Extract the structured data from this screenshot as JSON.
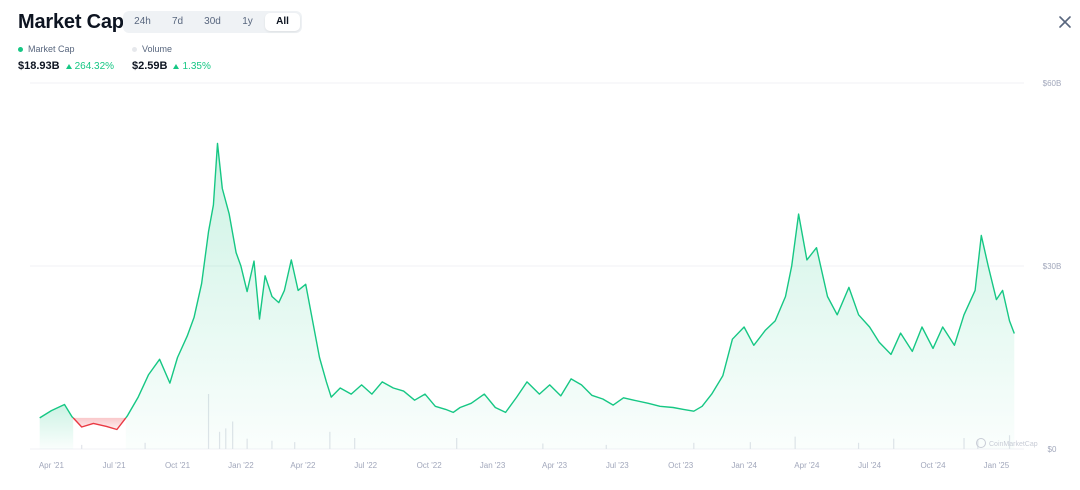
{
  "header": {
    "title": "Market Cap",
    "tabs": [
      {
        "label": "24h",
        "active": false
      },
      {
        "label": "7d",
        "active": false
      },
      {
        "label": "30d",
        "active": false
      },
      {
        "label": "1y",
        "active": false
      },
      {
        "label": "All",
        "active": true
      }
    ],
    "close_icon": "close-icon"
  },
  "legend": {
    "market_cap": {
      "label": "Market Cap",
      "color": "#16c784",
      "value": "$18.93B",
      "change": "264.32%",
      "direction": "up"
    },
    "volume": {
      "label": "Volume",
      "color": "#e6e8ec",
      "value": "$2.59B",
      "change": "1.35%",
      "direction": "up"
    }
  },
  "watermark": "CoinMarketCap",
  "colors": {
    "up": "#16c784",
    "down": "#ea3943",
    "grid": "#f0f2f5",
    "axis_text": "#a1a7bb",
    "volume": "#e1e4ea"
  },
  "chart_data": {
    "type": "area",
    "title": "Market Cap",
    "series": [
      {
        "name": "Market Cap",
        "color": "#16c784",
        "x": [
          "2021-03-15",
          "2021-04-01",
          "2021-04-20",
          "2021-05-01",
          "2021-05-15",
          "2021-06-01",
          "2021-06-20",
          "2021-07-05",
          "2021-07-20",
          "2021-08-05",
          "2021-08-20",
          "2021-09-05",
          "2021-09-20",
          "2021-10-01",
          "2021-10-15",
          "2021-10-25",
          "2021-11-05",
          "2021-11-15",
          "2021-11-22",
          "2021-11-28",
          "2021-12-05",
          "2021-12-15",
          "2021-12-25",
          "2022-01-01",
          "2022-01-10",
          "2022-01-20",
          "2022-01-28",
          "2022-02-05",
          "2022-02-15",
          "2022-02-25",
          "2022-03-05",
          "2022-03-15",
          "2022-03-25",
          "2022-04-05",
          "2022-04-15",
          "2022-04-25",
          "2022-05-05",
          "2022-05-12",
          "2022-05-25",
          "2022-06-10",
          "2022-06-25",
          "2022-07-10",
          "2022-07-25",
          "2022-08-10",
          "2022-08-25",
          "2022-09-10",
          "2022-09-25",
          "2022-10-10",
          "2022-10-25",
          "2022-11-05",
          "2022-11-15",
          "2022-12-01",
          "2022-12-20",
          "2023-01-05",
          "2023-01-20",
          "2023-02-05",
          "2023-02-20",
          "2023-03-10",
          "2023-03-25",
          "2023-04-10",
          "2023-04-25",
          "2023-05-10",
          "2023-05-25",
          "2023-06-10",
          "2023-06-25",
          "2023-07-10",
          "2023-07-25",
          "2023-08-15",
          "2023-09-01",
          "2023-09-20",
          "2023-10-05",
          "2023-10-20",
          "2023-11-01",
          "2023-11-15",
          "2023-12-01",
          "2023-12-15",
          "2024-01-01",
          "2024-01-15",
          "2024-02-01",
          "2024-02-15",
          "2024-03-01",
          "2024-03-10",
          "2024-03-20",
          "2024-04-01",
          "2024-04-15",
          "2024-05-01",
          "2024-05-15",
          "2024-06-01",
          "2024-06-15",
          "2024-07-01",
          "2024-07-15",
          "2024-08-01",
          "2024-08-15",
          "2024-09-01",
          "2024-09-15",
          "2024-10-01",
          "2024-10-15",
          "2024-11-01",
          "2024-11-15",
          "2024-12-01",
          "2024-12-10",
          "2024-12-20",
          "2025-01-01",
          "2025-01-10",
          "2025-01-20",
          "2025-01-27"
        ],
        "y": [
          5.1,
          6.3,
          7.3,
          5.3,
          3.6,
          4.2,
          3.7,
          3.2,
          5.4,
          8.5,
          12.2,
          14.7,
          10.8,
          15.0,
          18.5,
          21.6,
          27.1,
          35.6,
          40.0,
          50.1,
          42.7,
          38.5,
          32.2,
          30.0,
          25.8,
          30.8,
          21.3,
          28.4,
          25.0,
          24.0,
          26.0,
          31.0,
          26.0,
          27.0,
          21.0,
          15.0,
          11.0,
          8.5,
          10.0,
          9.0,
          10.5,
          9.0,
          11.0,
          10.0,
          9.5,
          8.0,
          9.0,
          7.0,
          6.5,
          6.0,
          6.8,
          7.5,
          9.0,
          6.8,
          6.0,
          8.5,
          11.0,
          9.0,
          10.5,
          8.7,
          11.5,
          10.5,
          8.8,
          8.2,
          7.2,
          8.4,
          8.0,
          7.5,
          7.0,
          6.8,
          6.5,
          6.2,
          7.0,
          9.0,
          12.0,
          18.0,
          20.0,
          17.0,
          19.5,
          21.0,
          25.0,
          30.0,
          38.5,
          31.0,
          33.0,
          25.0,
          22.0,
          26.5,
          22.0,
          20.0,
          17.5,
          15.5,
          19.0,
          16.0,
          20.0,
          16.5,
          20.0,
          17.0,
          22.0,
          26.0,
          35.0,
          30.0,
          24.5,
          26.0,
          21.0,
          18.93
        ]
      },
      {
        "name": "Volume",
        "color": "#e1e4ea",
        "x": [
          "2021-05-15",
          "2021-08-15",
          "2021-11-15",
          "2021-12-01",
          "2021-12-10",
          "2021-12-20",
          "2022-01-10",
          "2022-02-15",
          "2022-03-20",
          "2022-05-10",
          "2022-06-15",
          "2022-11-10",
          "2023-03-15",
          "2023-06-15",
          "2023-10-20",
          "2024-01-10",
          "2024-03-15",
          "2024-06-15",
          "2024-08-05",
          "2024-11-15",
          "2024-12-05",
          "2025-01-20"
        ],
        "y": [
          0.6,
          0.9,
          8.0,
          2.5,
          3.0,
          4.0,
          1.5,
          1.2,
          1.0,
          2.5,
          1.6,
          1.6,
          0.8,
          0.6,
          0.9,
          1.0,
          1.8,
          0.9,
          1.5,
          1.6,
          1.4,
          2.0
        ]
      }
    ],
    "xlabel": "",
    "ylabel": "",
    "x_ticks": [
      "Apr '21",
      "Jul '21",
      "Oct '21",
      "Jan '22",
      "Apr '22",
      "Jul '22",
      "Oct '22",
      "Jan '23",
      "Apr '23",
      "Jul '23",
      "Oct '23",
      "Jan '24",
      "Apr '24",
      "Jul '24",
      "Oct '24",
      "Jan '25"
    ],
    "y_ticks": [
      "$0",
      "$30B",
      "$60B"
    ],
    "ylim": [
      0,
      60
    ],
    "grid": true,
    "y_axis_position": "right"
  }
}
